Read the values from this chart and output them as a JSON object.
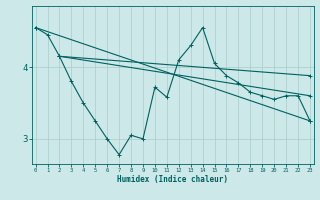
{
  "xlabel": "Humidex (Indice chaleur)",
  "bg_color": "#cce8e8",
  "line_color": "#006060",
  "grid_color": "#aacccc",
  "x_ticks": [
    0,
    1,
    2,
    3,
    4,
    5,
    6,
    7,
    8,
    9,
    10,
    11,
    12,
    13,
    14,
    15,
    16,
    17,
    18,
    19,
    20,
    21,
    22,
    23
  ],
  "y_ticks": [
    3,
    4
  ],
  "ylim": [
    2.65,
    4.85
  ],
  "xlim": [
    -0.3,
    23.3
  ],
  "series": [
    {
      "x": [
        0,
        1,
        2,
        3,
        4,
        5,
        6,
        7,
        8,
        9,
        10,
        11,
        12,
        13,
        14,
        15,
        16,
        17,
        18,
        19,
        20,
        21,
        22,
        23
      ],
      "y": [
        4.55,
        4.45,
        4.15,
        3.8,
        3.5,
        3.25,
        3.0,
        2.78,
        3.05,
        3.0,
        3.72,
        3.58,
        4.1,
        4.3,
        4.55,
        4.05,
        3.88,
        3.78,
        3.65,
        3.6,
        3.55,
        3.6,
        3.6,
        3.25
      ]
    },
    {
      "x": [
        0,
        23
      ],
      "y": [
        4.55,
        3.25
      ]
    },
    {
      "x": [
        2,
        23
      ],
      "y": [
        4.15,
        3.6
      ]
    },
    {
      "x": [
        2,
        23
      ],
      "y": [
        4.15,
        3.88
      ]
    }
  ]
}
